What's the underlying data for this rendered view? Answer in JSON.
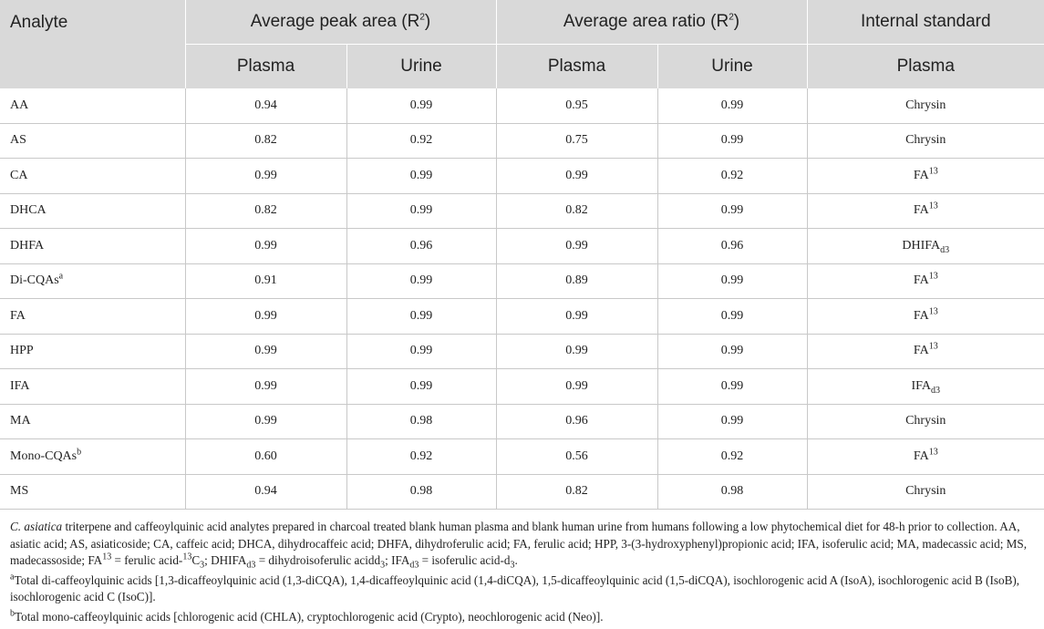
{
  "table": {
    "header_row1": {
      "analyte": "Analyte",
      "peak_area_base": "Average peak area (R",
      "peak_area_sup": "2",
      "peak_area_close": ")",
      "area_ratio_base": "Average area ratio (R",
      "area_ratio_sup": "2",
      "area_ratio_close": ")",
      "internal_standard": "Internal standard"
    },
    "header_row2": [
      "Plasma",
      "Urine",
      "Plasma",
      "Urine",
      "Plasma"
    ],
    "rows": [
      {
        "analyte": "AA",
        "a_sup": "",
        "pa_plasma": "0.94",
        "pa_urine": "0.99",
        "ar_plasma": "0.95",
        "ar_urine": "0.99",
        "is_base": "Chrysin",
        "is_sup": "",
        "is_sub": ""
      },
      {
        "analyte": "AS",
        "a_sup": "",
        "pa_plasma": "0.82",
        "pa_urine": "0.92",
        "ar_plasma": "0.75",
        "ar_urine": "0.99",
        "is_base": "Chrysin",
        "is_sup": "",
        "is_sub": ""
      },
      {
        "analyte": "CA",
        "a_sup": "",
        "pa_plasma": "0.99",
        "pa_urine": "0.99",
        "ar_plasma": "0.99",
        "ar_urine": "0.92",
        "is_base": "FA",
        "is_sup": "13",
        "is_sub": ""
      },
      {
        "analyte": "DHCA",
        "a_sup": "",
        "pa_plasma": "0.82",
        "pa_urine": "0.99",
        "ar_plasma": "0.82",
        "ar_urine": "0.99",
        "is_base": "FA",
        "is_sup": "13",
        "is_sub": ""
      },
      {
        "analyte": "DHFA",
        "a_sup": "",
        "pa_plasma": "0.99",
        "pa_urine": "0.96",
        "ar_plasma": "0.99",
        "ar_urine": "0.96",
        "is_base": "DHIFA",
        "is_sup": "",
        "is_sub": "d3"
      },
      {
        "analyte": "Di-CQAs",
        "a_sup": "a",
        "pa_plasma": "0.91",
        "pa_urine": "0.99",
        "ar_plasma": "0.89",
        "ar_urine": "0.99",
        "is_base": "FA",
        "is_sup": "13",
        "is_sub": ""
      },
      {
        "analyte": "FA",
        "a_sup": "",
        "pa_plasma": "0.99",
        "pa_urine": "0.99",
        "ar_plasma": "0.99",
        "ar_urine": "0.99",
        "is_base": "FA",
        "is_sup": "13",
        "is_sub": ""
      },
      {
        "analyte": "HPP",
        "a_sup": "",
        "pa_plasma": "0.99",
        "pa_urine": "0.99",
        "ar_plasma": "0.99",
        "ar_urine": "0.99",
        "is_base": "FA",
        "is_sup": "13",
        "is_sub": ""
      },
      {
        "analyte": "IFA",
        "a_sup": "",
        "pa_plasma": "0.99",
        "pa_urine": "0.99",
        "ar_plasma": "0.99",
        "ar_urine": "0.99",
        "is_base": "IFA",
        "is_sup": "",
        "is_sub": "d3"
      },
      {
        "analyte": "MA",
        "a_sup": "",
        "pa_plasma": "0.99",
        "pa_urine": "0.98",
        "ar_plasma": "0.96",
        "ar_urine": "0.99",
        "is_base": "Chrysin",
        "is_sup": "",
        "is_sub": ""
      },
      {
        "analyte": "Mono-CQAs",
        "a_sup": "b",
        "pa_plasma": "0.60",
        "pa_urine": "0.92",
        "ar_plasma": "0.56",
        "ar_urine": "0.92",
        "is_base": "FA",
        "is_sup": "13",
        "is_sub": ""
      },
      {
        "analyte": "MS",
        "a_sup": "",
        "pa_plasma": "0.94",
        "pa_urine": "0.98",
        "ar_plasma": "0.82",
        "ar_urine": "0.98",
        "is_base": "Chrysin",
        "is_sup": "",
        "is_sub": ""
      }
    ]
  },
  "notes": {
    "main_species": "C. asiatica",
    "main_1": " triterpene and caffeoylquinic acid analytes prepared in charcoal treated blank human plasma and blank human urine from humans following a low phytochemical diet for 48-h prior to collection. AA, asiatic acid; AS, asiaticoside; CA, caffeic acid; DHCA, dihydrocaffeic acid; DHFA, dihydroferulic acid; FA, ferulic acid; HPP, 3-(3-hydroxyphenyl)propionic acid; IFA, isoferulic acid; MA, madecassic acid; MS, madecassoside; FA",
    "main_sup1": "13",
    "main_2": " = ferulic acid-",
    "main_sup2": "13",
    "main_3": "C",
    "main_sub1": "3",
    "main_4": "; DHIFA",
    "main_sub2": "d3",
    "main_5": " = dihydroisoferulic acidd",
    "main_sub3": "3",
    "main_6": "; IFA",
    "main_sub4": "d3",
    "main_7": " = isoferulic acid-d",
    "main_sub5": "3",
    "main_8": ".",
    "note_a_mark": "a",
    "note_a": "Total di-caffeoylquinic acids [1,3-dicaffeoylquinic acid (1,3-diCQA), 1,4-dicaffeoylquinic acid (1,4-diCQA), 1,5-dicaffeoylquinic acid (1,5-diCQA), isochlorogenic acid A (IsoA), isochlorogenic acid B (IsoB), isochlorogenic acid C (IsoC)].",
    "note_b_mark": "b",
    "note_b": "Total mono-caffeoylquinic acids [chlorogenic acid (CHLA), cryptochlorogenic acid (Crypto), neochlorogenic acid (Neo)]."
  }
}
